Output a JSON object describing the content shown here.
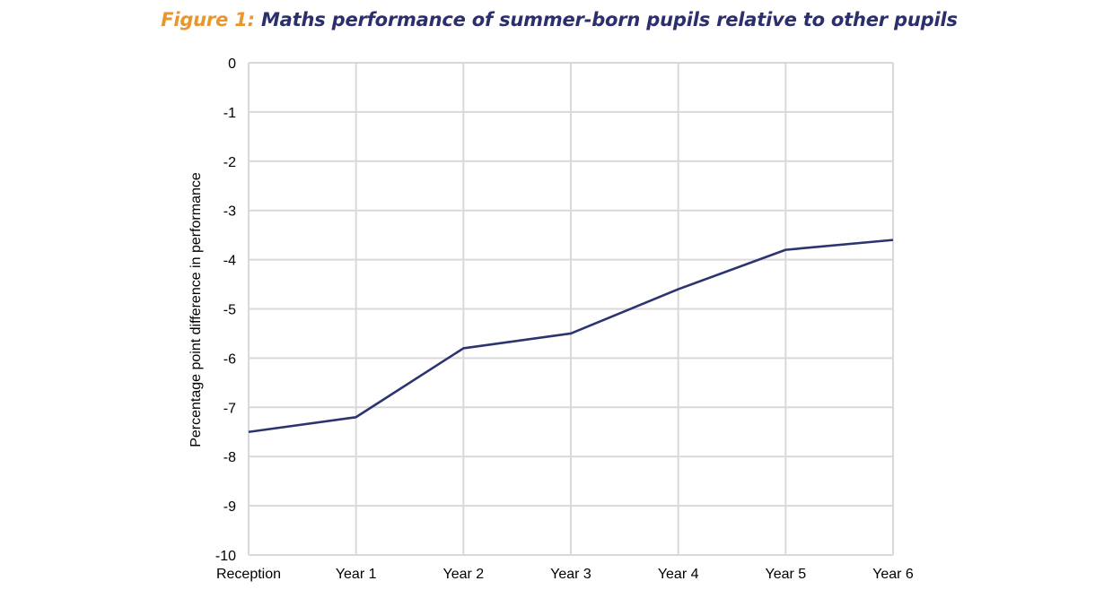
{
  "figure": {
    "prefix": "Figure 1:",
    "title": "Maths performance of summer-born pupils relative to other pupils"
  },
  "chart_data": {
    "type": "line",
    "title": "Maths performance of summer-born pupils relative to other pupils",
    "categories": [
      "Reception",
      "Year 1",
      "Year 2",
      "Year 3",
      "Year 4",
      "Year 5",
      "Year 6"
    ],
    "series": [
      {
        "values": [
          -7.5,
          -7.2,
          -5.8,
          -5.5,
          -4.6,
          -3.8,
          -3.6
        ],
        "color": "#2b3470"
      }
    ],
    "xlabel": "",
    "ylabel": "Percentage point difference in performance",
    "ylim": [
      -10,
      0
    ],
    "yticks": [
      0,
      -1,
      -2,
      -3,
      -4,
      -5,
      -6,
      -7,
      -8,
      -9,
      -10
    ],
    "grid": true,
    "legend": "none",
    "colors": {
      "grid": "#d9d9d9",
      "title_prefix": "#e8962e",
      "title_text": "#2b2f6b"
    }
  }
}
